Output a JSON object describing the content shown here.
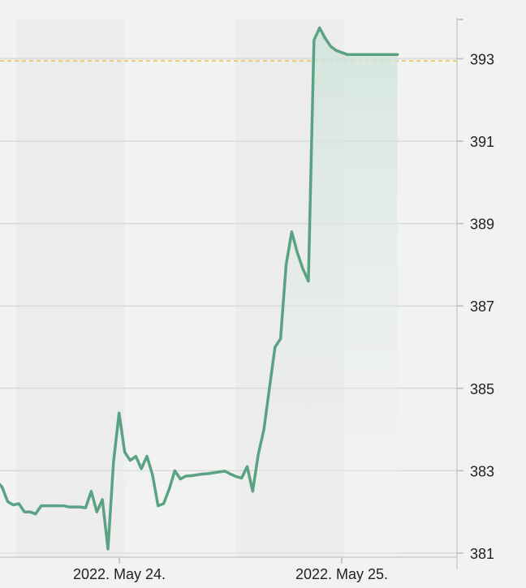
{
  "chart_data": {
    "type": "area",
    "title": "",
    "xlabel": "",
    "ylabel": "",
    "y_ticks": [
      "381",
      "383",
      "385",
      "387",
      "389",
      "391",
      "393"
    ],
    "x_ticks": [
      "2022. May 24.",
      "2022. May 25."
    ],
    "ylim": [
      380.9,
      393.9
    ],
    "y_axis_side": "right",
    "grid": true,
    "reference_line": {
      "value": 392.95,
      "color": "#e6c04a",
      "style": "dashed"
    },
    "colors": {
      "line": "#5aa283",
      "fill_top": "#cfe3db",
      "background": "#f2f2f2",
      "band": "#ececec"
    },
    "series": [
      {
        "x": [
          -0.6,
          -0.5,
          -0.4,
          -0.3,
          -0.2,
          -0.1,
          0.0,
          0.1,
          0.2,
          0.3,
          0.4,
          0.5,
          0.6,
          0.7,
          0.8,
          0.9,
          1.0,
          1.1,
          1.2,
          1.3,
          1.4,
          1.5,
          1.6,
          1.7,
          1.8,
          1.9,
          2.0,
          2.1,
          2.2,
          2.3,
          2.4,
          2.5,
          2.6,
          2.7,
          2.8,
          2.9,
          3.0,
          3.1,
          3.2,
          3.3,
          3.4,
          3.5,
          3.6,
          3.7,
          3.8,
          3.9,
          4.0,
          4.1,
          4.2,
          4.3,
          4.4,
          4.5,
          4.6,
          4.7,
          4.8,
          4.9,
          5.0,
          5.1,
          5.2,
          5.3,
          5.4,
          5.5,
          5.6,
          5.7,
          5.8,
          5.9,
          6.0,
          6.1,
          6.2,
          6.3,
          6.4,
          6.5,
          6.6,
          6.7,
          6.8,
          6.9,
          7.0
        ],
        "y": [
          382.2,
          382.25,
          382.55,
          382.9,
          382.75,
          382.6,
          382.25,
          382.17,
          382.2,
          382.0,
          382.0,
          381.95,
          382.15,
          382.15,
          382.15,
          382.15,
          382.15,
          382.12,
          382.12,
          382.12,
          382.1,
          382.5,
          382.0,
          382.3,
          381.1,
          383.2,
          384.4,
          383.45,
          383.25,
          383.35,
          383.05,
          383.35,
          382.9,
          382.15,
          382.2,
          382.55,
          383.0,
          382.8,
          382.87,
          382.88,
          382.9,
          382.92,
          382.93,
          382.95,
          382.97,
          382.99,
          382.92,
          382.86,
          382.82,
          383.1,
          382.5,
          383.4,
          384.0,
          385.0,
          386.0,
          386.2,
          388.0,
          388.8,
          388.3,
          387.9,
          387.6,
          393.45,
          393.75,
          393.5,
          393.3,
          393.2,
          393.15,
          393.1,
          393.1,
          393.1,
          393.1,
          393.1,
          393.1,
          393.1,
          393.1,
          393.1,
          393.1
        ]
      }
    ]
  }
}
